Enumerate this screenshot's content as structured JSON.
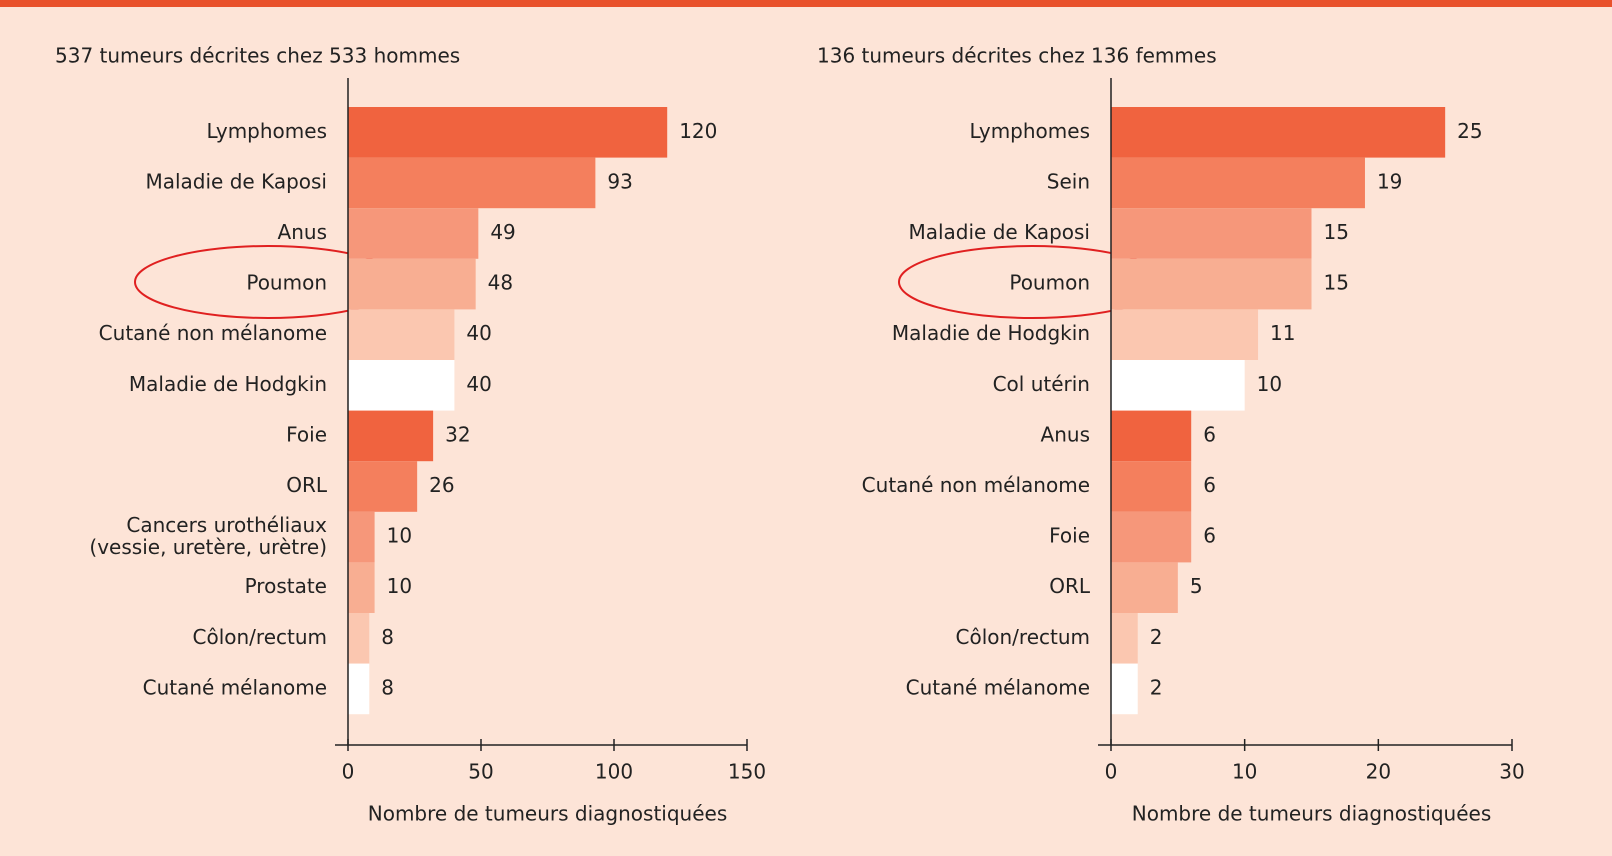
{
  "chart_data": [
    {
      "type": "bar",
      "orientation": "horizontal",
      "title": "537 tumeurs décrites chez 533 hommes",
      "categories": [
        "Lymphomes",
        "Maladie de Kaposi",
        "Anus",
        "Poumon",
        "Cutané non mélanome",
        "Maladie de Hodgkin",
        "Foie",
        "ORL",
        "Cancers urothéliaux\n(vessie, uretère, urètre)",
        "Prostate",
        "Côlon/rectum",
        "Cutané mélanome"
      ],
      "values": [
        120,
        93,
        49,
        48,
        40,
        40,
        32,
        26,
        10,
        10,
        8,
        8
      ],
      "colors": [
        "#f0633f",
        "#f47f5d",
        "#f6977a",
        "#f8ae92",
        "#fbc7b0",
        "#ffffff",
        "#f0633f",
        "#f47f5d",
        "#f6977a",
        "#f8ae92",
        "#fbc7b0",
        "#ffffff"
      ],
      "xlim": [
        0,
        150
      ],
      "xticks": [
        0,
        50,
        100,
        150
      ],
      "x_label": "Nombre de tumeurs diagnostiquées"
    },
    {
      "type": "bar",
      "orientation": "horizontal",
      "title": "136 tumeurs décrites chez 136 femmes",
      "categories": [
        "Lymphomes",
        "Sein",
        "Maladie de Kaposi",
        "Poumon",
        "Maladie de Hodgkin",
        "Col utérin",
        "Anus",
        "Cutané non mélanome",
        "Foie",
        "ORL",
        "Côlon/rectum",
        "Cutané mélanome"
      ],
      "values": [
        25,
        19,
        15,
        15,
        11,
        10,
        6,
        6,
        6,
        5,
        2,
        2
      ],
      "colors": [
        "#f0633f",
        "#f47f5d",
        "#f6977a",
        "#f8ae92",
        "#fbc7b0",
        "#ffffff",
        "#f0633f",
        "#f47f5d",
        "#f6977a",
        "#f8ae92",
        "#fbc7b0",
        "#ffffff"
      ],
      "xlim": [
        0,
        30
      ],
      "xticks": [
        0,
        10,
        20,
        30
      ],
      "x_label": "Nombre de tumeurs diagnostiquées"
    }
  ]
}
